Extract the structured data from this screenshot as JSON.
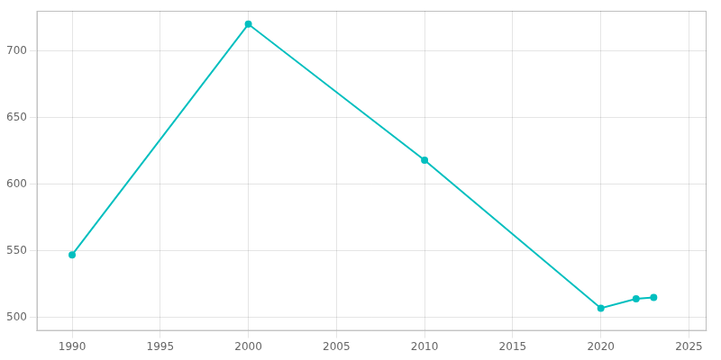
{
  "chart_data": {
    "type": "line",
    "x": [
      1990,
      2000,
      2010,
      2020,
      2022,
      2023
    ],
    "values": [
      547,
      720,
      618,
      507,
      514,
      515
    ],
    "color": "#00BFBF",
    "marker": "o",
    "xlim": [
      1988,
      2026
    ],
    "xticks": [
      1990,
      1995,
      2000,
      2005,
      2010,
      2015,
      2020,
      2025
    ],
    "ylim": [
      490,
      730
    ],
    "yticks": [
      500,
      550,
      600,
      650,
      700
    ],
    "grid": true
  }
}
